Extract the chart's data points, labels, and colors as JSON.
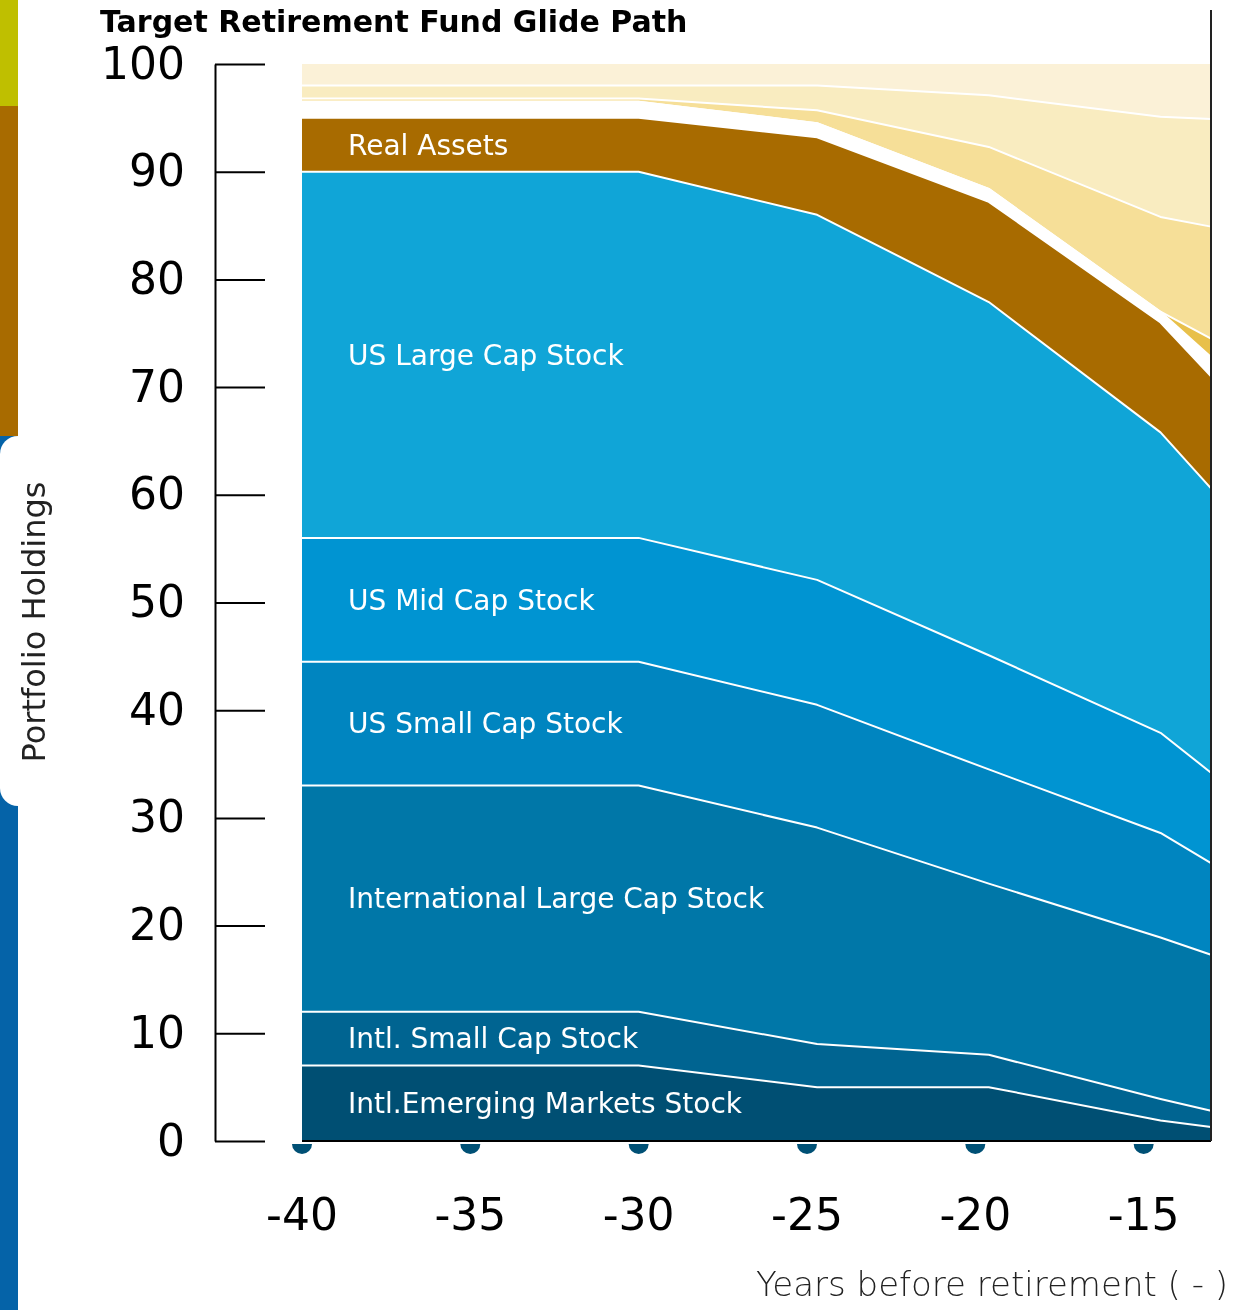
{
  "chart_data": {
    "type": "area",
    "stacked": true,
    "title": "Target Retirement Fund Glide Path",
    "xlabel": "Years before retirement ( - )",
    "ylabel": "Portfolio Holdings",
    "x": [
      -40,
      -30,
      -24.7,
      -19.6,
      -14.5,
      -13
    ],
    "xlim": [
      -40,
      -13
    ],
    "xticks": [
      -40,
      -35,
      -30,
      -25,
      -20,
      -15
    ],
    "ylim": [
      0,
      100
    ],
    "yticks": [
      0,
      10,
      20,
      30,
      40,
      50,
      60,
      70,
      80,
      90,
      100
    ],
    "grid": false,
    "series": [
      {
        "name": "Intl.Emerging Markets Stock",
        "color": "#004f73",
        "values": [
          7,
          7,
          5,
          5,
          1.9,
          1.3
        ]
      },
      {
        "name": "Intl. Small Cap Stock",
        "color": "#006491",
        "values": [
          5,
          5,
          4,
          3,
          2.0,
          1.5
        ]
      },
      {
        "name": "International Large Cap Stock",
        "color": "#0077a8",
        "values": [
          21,
          21,
          20.1,
          15.9,
          15.0,
          14.5
        ]
      },
      {
        "name": "US Small Cap Stock",
        "color": "#0085c0",
        "values": [
          11.5,
          11.5,
          11.4,
          10.6,
          9.7,
          8.5
        ]
      },
      {
        "name": "US Mid Cap Stock",
        "color": "#0094d2",
        "values": [
          11.5,
          11.5,
          11.6,
          10.6,
          9.3,
          8.4
        ]
      },
      {
        "name": "US Large Cap Stock",
        "color": "#10a5d7",
        "values": [
          34,
          34,
          33.9,
          32.8,
          27.9,
          26.4
        ]
      },
      {
        "name": "Real Assets",
        "color": "#a86b00",
        "values": [
          5,
          5,
          7.2,
          9.3,
          10.2,
          10.4
        ]
      },
      {
        "color": "#ffffff",
        "values": [
          1.5,
          1.5,
          1.3,
          1.2,
          1.0,
          1.8
        ]
      },
      {
        "color": "#e8c04a",
        "values": [
          0,
          0,
          0,
          0,
          0,
          1.7
        ]
      },
      {
        "color": "#f6df98",
        "values": [
          0.3,
          0.3,
          1.2,
          3.9,
          8.8,
          10.4
        ]
      },
      {
        "color": "#f9ecc0",
        "values": [
          1.2,
          1.2,
          2.3,
          4.8,
          9.3,
          10.0
        ]
      },
      {
        "color": "#fbf1d7",
        "values": [
          2.0,
          2.0,
          2.0,
          2.9,
          4.9,
          5.1
        ]
      }
    ]
  }
}
